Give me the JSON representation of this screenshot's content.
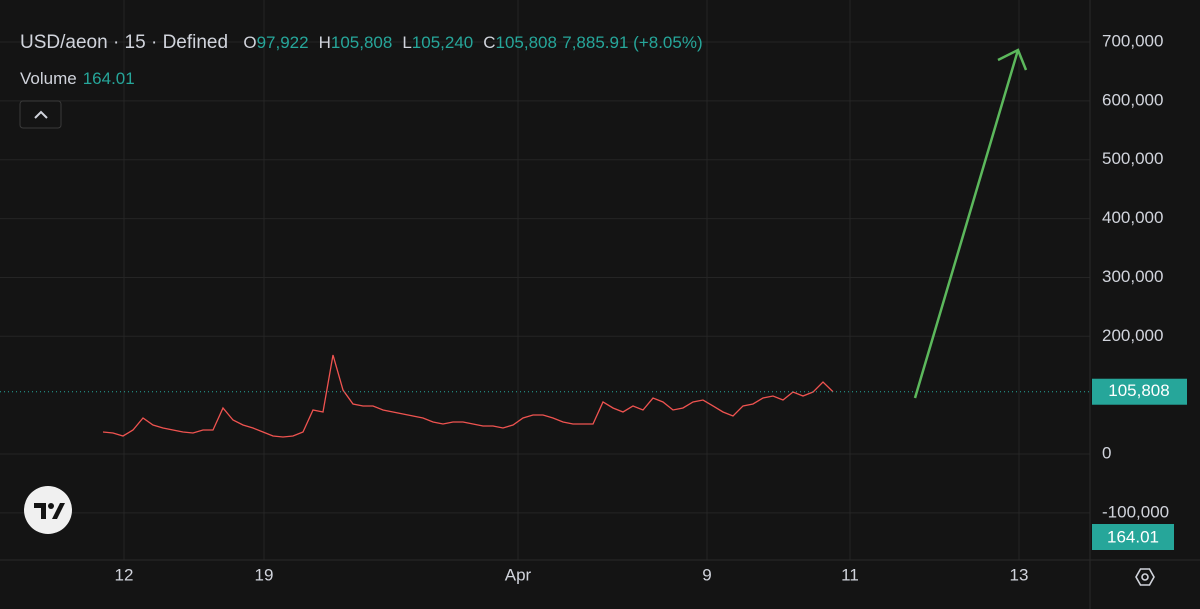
{
  "chart_data": {
    "type": "line",
    "title": "USD/aeon · 15 · Defined",
    "ohlc": {
      "labels": [
        "O",
        "H",
        "L",
        "C"
      ],
      "values": [
        97922,
        105808,
        105240,
        105808
      ],
      "value_labels": [
        "97,922",
        "105,808",
        "105,240",
        "105,808"
      ]
    },
    "change": "7,885.91 (+8.05%)",
    "volume_label": "Volume",
    "volume_value": 164.01,
    "series": [
      {
        "name": "USD/aeon",
        "color": "#ef5350",
        "values": [
          37400,
          35700,
          30600,
          40800,
          61200,
          49300,
          44200,
          40800,
          37400,
          35700,
          40800,
          40800,
          78200,
          57800,
          49300,
          44200,
          37400,
          30600,
          28900,
          30600,
          37400,
          74800,
          71400,
          168200,
          108700,
          85000,
          81600,
          81600,
          74800,
          71400,
          68000,
          64600,
          61200,
          54400,
          51000,
          54400,
          54400,
          51000,
          47600,
          47600,
          44200,
          49300,
          61200,
          66300,
          66300,
          61200,
          54400,
          51000,
          51000,
          51000,
          88400,
          78200,
          71400,
          81600,
          74800,
          95100,
          88400,
          74800,
          78200,
          88400,
          91700,
          81600,
          71400,
          64600,
          81600,
          85000,
          95100,
          98500,
          91700,
          105300,
          98500,
          105300,
          122300,
          105808
        ]
      }
    ],
    "xlim": [
      -10.3,
      98.7
    ],
    "xticks": [
      {
        "value": 2.1,
        "label": "12"
      },
      {
        "value": 16.1,
        "label": "19"
      },
      {
        "value": 41.5,
        "label": "Apr"
      },
      {
        "value": 60.4,
        "label": "9"
      },
      {
        "value": 74.7,
        "label": "11"
      },
      {
        "value": 91.6,
        "label": "13"
      }
    ],
    "ylim": [
      -180100,
      771400
    ],
    "yticks": [
      {
        "value": 700000,
        "label": "700,000"
      },
      {
        "value": 600000,
        "label": "600,000"
      },
      {
        "value": 500000,
        "label": "500,000"
      },
      {
        "value": 400000,
        "label": "400,000"
      },
      {
        "value": 300000,
        "label": "300,000"
      },
      {
        "value": 200000,
        "label": "200,000"
      },
      0,
      {
        "value": -100000,
        "label": "-100,000"
      }
    ],
    "grid": true
  }
}
